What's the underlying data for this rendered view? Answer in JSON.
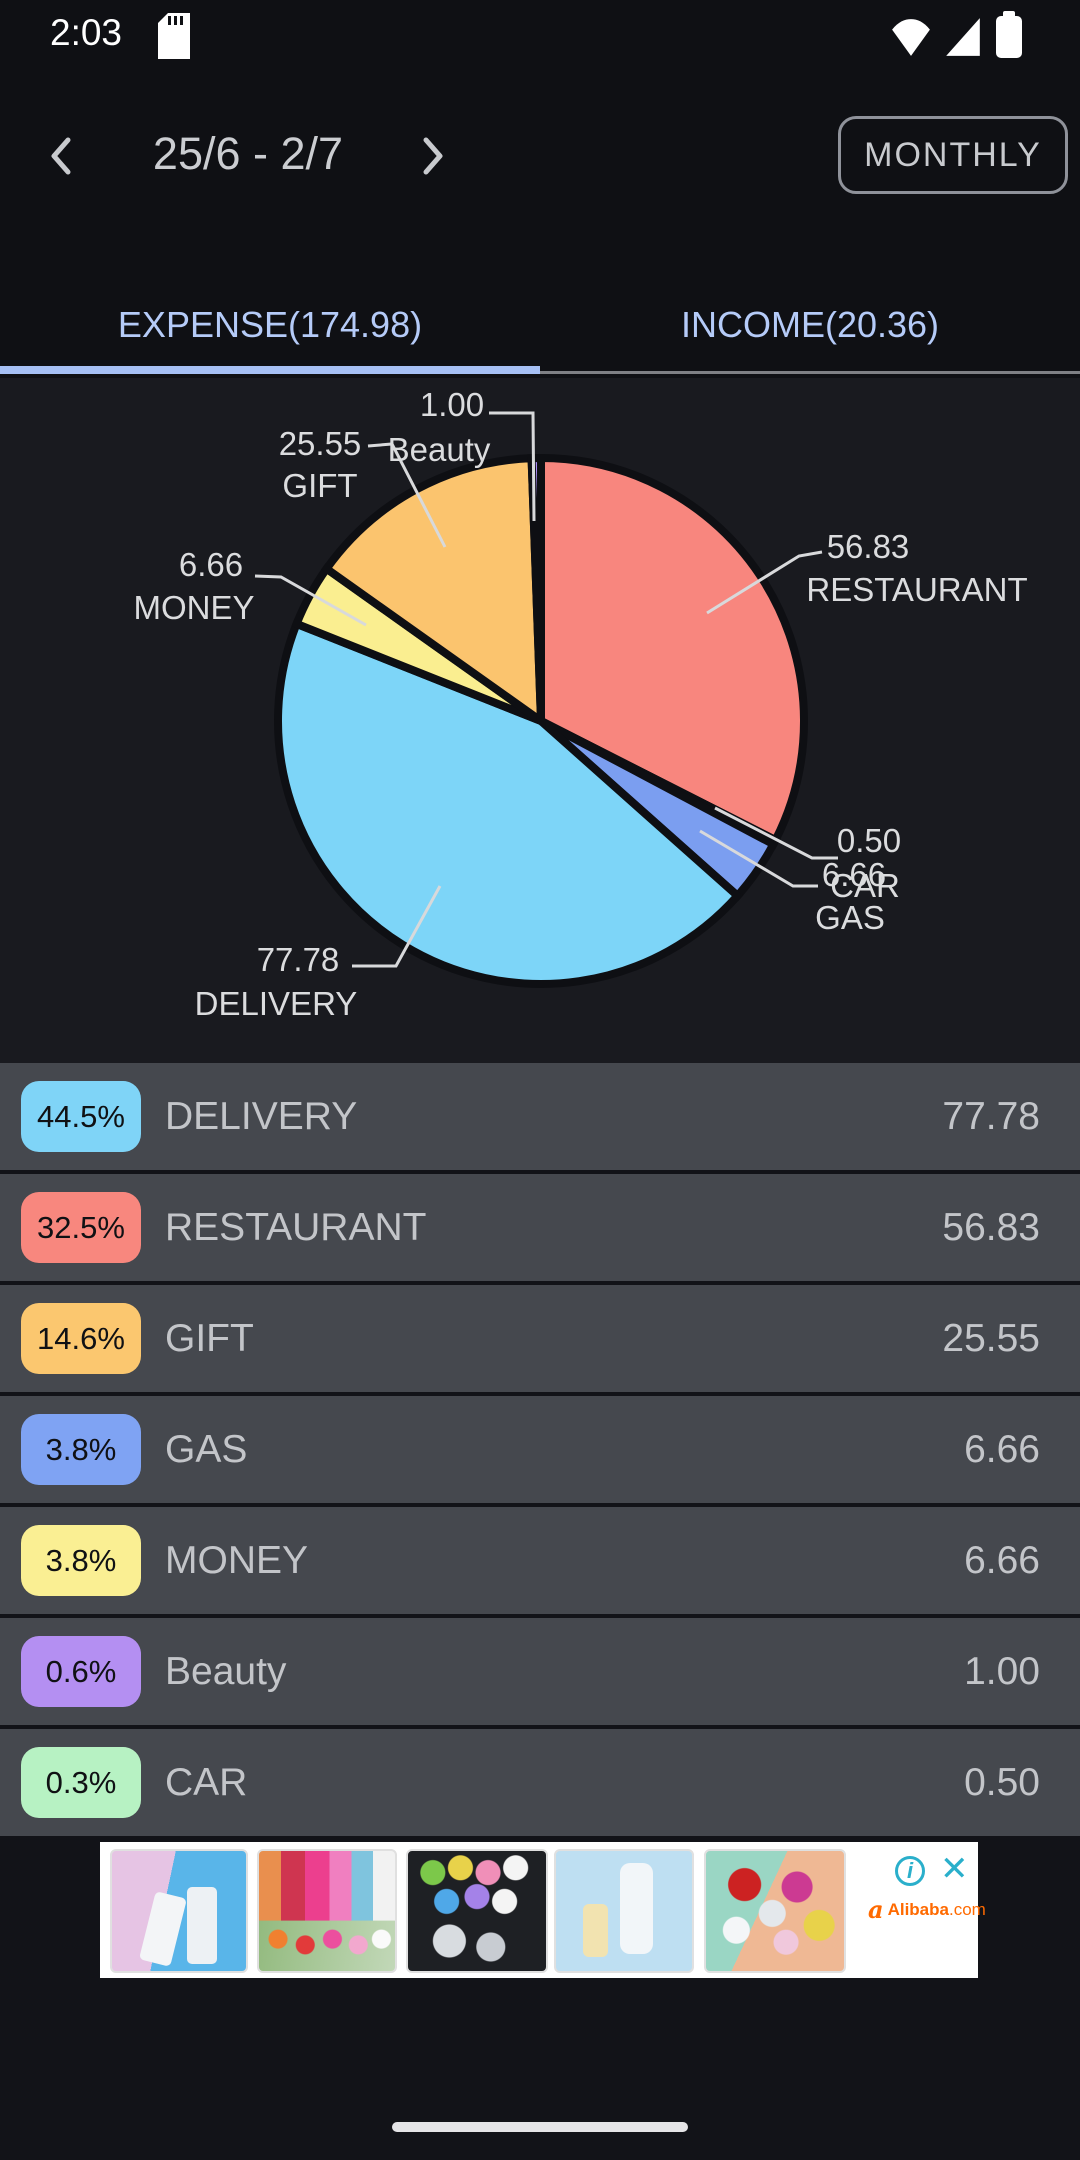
{
  "status_bar": {
    "time": "2:03",
    "icons": [
      "sim-icon",
      "wifi-icon",
      "signal-bars-icon",
      "battery-icon"
    ]
  },
  "header": {
    "date_range": "25/6 - 2/7",
    "period_button_label": "MONTHLY",
    "icons": [
      "chevron-left-icon",
      "chevron-right-icon"
    ]
  },
  "tabs": {
    "expense_label": "EXPENSE(174.98)",
    "income_label": "INCOME(20.36)",
    "active_tab": "expense",
    "active_indicator_color": "#A6C0F4"
  },
  "chart_data": {
    "type": "pie",
    "title": "",
    "total": 174.98,
    "direction": "clockwise",
    "start_angle_deg": 0,
    "slices": [
      {
        "label": "RESTAURANT",
        "value": 56.83,
        "value_label": "56.83",
        "percent_label": "32.5%",
        "color": "#F8867E"
      },
      {
        "label": "CAR",
        "value": 0.5,
        "value_label": "0.50",
        "percent_label": "0.3%",
        "color": "#A8EFBC"
      },
      {
        "label": "GAS",
        "value": 6.66,
        "value_label": "6.66",
        "percent_label": "3.8%",
        "color": "#7B9EF0"
      },
      {
        "label": "DELIVERY",
        "value": 77.78,
        "value_label": "77.78",
        "percent_label": "44.5%",
        "color": "#7DD5F8"
      },
      {
        "label": "MONEY",
        "value": 6.66,
        "value_label": "6.66",
        "percent_label": "3.8%",
        "color": "#FAEE90"
      },
      {
        "label": "GIFT",
        "value": 25.55,
        "value_label": "25.55",
        "percent_label": "14.6%",
        "color": "#FBC46E"
      },
      {
        "label": "Beauty",
        "value": 1.0,
        "value_label": "1.00",
        "percent_label": "0.6%",
        "color": "#A98BF5"
      }
    ]
  },
  "breakdown_rows": [
    {
      "percent_label": "44.5%",
      "label": "DELIVERY",
      "value_label": "77.78",
      "color": "#7FD4F7"
    },
    {
      "percent_label": "32.5%",
      "label": "RESTAURANT",
      "value_label": "56.83",
      "color": "#F8877E"
    },
    {
      "percent_label": "14.6%",
      "label": "GIFT",
      "value_label": "25.55",
      "color": "#FBC76F"
    },
    {
      "percent_label": "3.8%",
      "label": "GAS",
      "value_label": "6.66",
      "color": "#7FA3F3"
    },
    {
      "percent_label": "3.8%",
      "label": "MONEY",
      "value_label": "6.66",
      "color": "#FAEF93"
    },
    {
      "percent_label": "0.6%",
      "label": "Beauty",
      "value_label": "1.00",
      "color": "#B48FF2"
    },
    {
      "percent_label": "0.3%",
      "label": "CAR",
      "value_label": "0.50",
      "color": "#B7F2C3"
    }
  ],
  "ad": {
    "brand_bold": "Alibaba",
    "brand_suffix": ".com",
    "info_glyph": "i",
    "close_glyph": "✕",
    "icons": [
      "info-icon",
      "close-icon",
      "alibaba-logo-icon"
    ],
    "thumbnails": [
      {
        "name": "spray-bottles-pink-blue"
      },
      {
        "name": "colorful-straps"
      },
      {
        "name": "mini-bottles-dark"
      },
      {
        "name": "bottles-light-blue"
      },
      {
        "name": "cosmetic-jars"
      }
    ]
  },
  "colors": {
    "row_background": "#45484E",
    "chart_background": "#191A1F",
    "top_background": "#0F1014"
  }
}
